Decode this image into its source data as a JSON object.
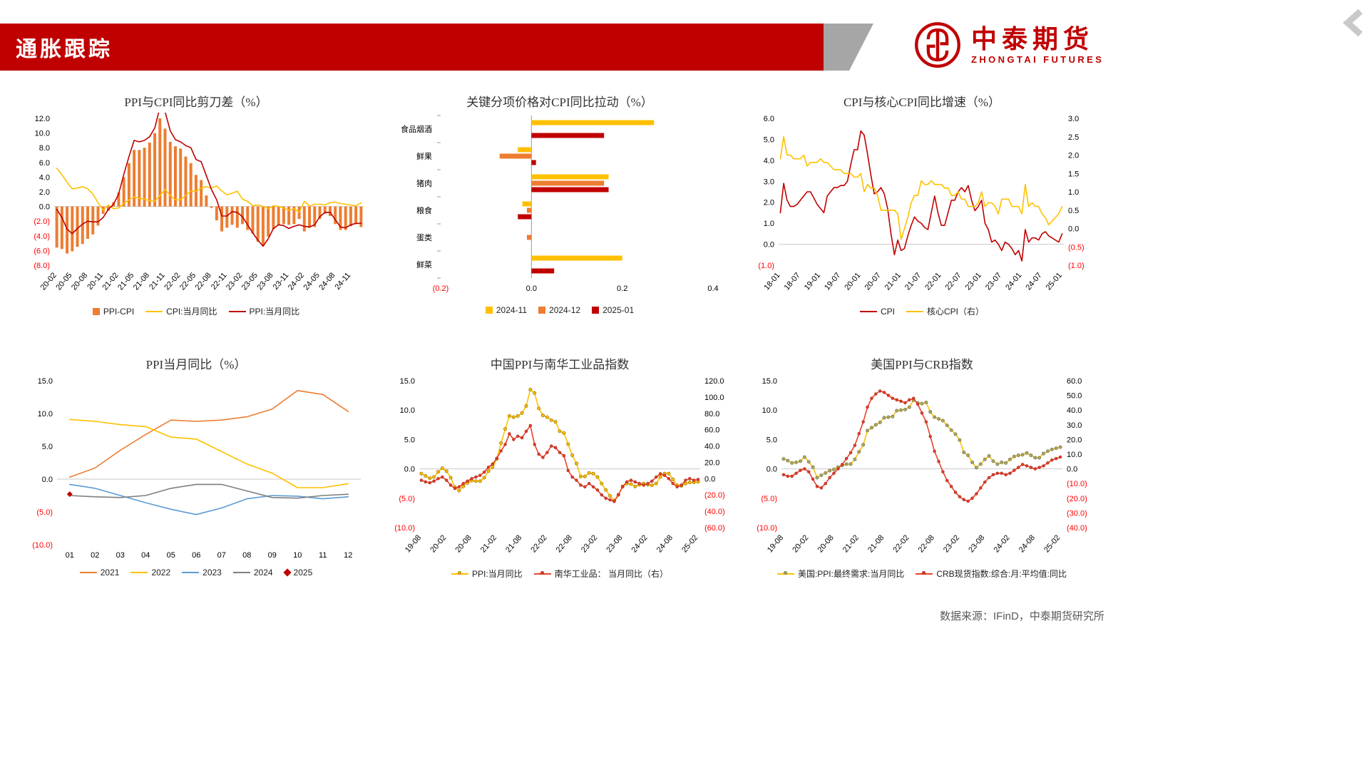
{
  "header": {
    "title": "通胀跟踪",
    "brand_name": "中泰期货",
    "brand_sub": "ZHONGTAI FUTURES",
    "accent_red": "#C00000",
    "swoosh_gray": "#A6A6A6"
  },
  "footer": {
    "source": "数据来源：IFinD，中泰期货研究所"
  },
  "chart_data": [
    {
      "type": "bar",
      "title": "PPI与CPI同比剪刀差（%）",
      "x_tick_labels": [
        "20-02",
        "20-05",
        "20-08",
        "20-11",
        "21-02",
        "21-05",
        "21-08",
        "21-11",
        "22-02",
        "22-05",
        "22-08",
        "22-11",
        "23-02",
        "23-05",
        "23-08",
        "23-11",
        "24-02",
        "24-05",
        "24-08",
        "24-11"
      ],
      "x_tick_every": 3,
      "left_axis": {
        "min": -8,
        "max": 12,
        "dec": 1,
        "ticks": [
          12,
          10,
          8,
          6,
          4,
          2,
          0,
          -2,
          -4,
          -6,
          -8
        ]
      },
      "series": [
        {
          "name": "PPI-CPI",
          "type": "bar",
          "color": "#ED7D31",
          "values": [
            -5.6,
            -5.8,
            -6.4,
            -6.1,
            -5.5,
            -5.1,
            -4.4,
            -3.8,
            -2.6,
            -1.0,
            -0.6,
            0.6,
            1.9,
            4.0,
            5.9,
            7.7,
            7.7,
            8.0,
            8.7,
            10.0,
            12.0,
            10.6,
            8.8,
            8.2,
            7.9,
            6.8,
            5.9,
            4.3,
            3.6,
            1.5,
            -0.2,
            -1.9,
            -3.4,
            -2.9,
            -2.5,
            -2.9,
            -2.4,
            -3.2,
            -3.7,
            -4.8,
            -5.4,
            -4.1,
            -3.1,
            -2.5,
            -2.4,
            -2.5,
            -2.4,
            -1.7,
            -3.4,
            -2.9,
            -2.8,
            -1.7,
            -1.0,
            -1.3,
            -2.4,
            -3.2,
            -3.2,
            -2.7,
            -2.4,
            -2.8
          ]
        },
        {
          "name": "CPI:当月同比",
          "type": "line",
          "color": "#FFC000",
          "values": [
            5.2,
            4.3,
            3.3,
            2.4,
            2.5,
            2.7,
            2.4,
            1.7,
            0.5,
            -0.5,
            0.2,
            -0.3,
            -0.2,
            0.4,
            0.9,
            1.3,
            1.1,
            1.0,
            0.8,
            0.7,
            1.5,
            2.3,
            1.5,
            0.9,
            0.9,
            1.5,
            2.1,
            2.1,
            2.5,
            2.7,
            2.5,
            2.8,
            2.1,
            1.6,
            1.8,
            2.1,
            1.0,
            0.7,
            0.1,
            0.2,
            0.0,
            -0.3,
            0.1,
            0.0,
            -0.2,
            -0.5,
            -0.3,
            -0.8,
            0.7,
            0.1,
            0.3,
            0.3,
            0.2,
            0.5,
            0.6,
            0.4,
            0.3,
            0.2,
            0.1,
            0.5
          ]
        },
        {
          "name": "PPI:当月同比",
          "type": "line",
          "color": "#C00000",
          "values": [
            -0.4,
            -1.5,
            -3.1,
            -3.7,
            -3.0,
            -2.4,
            -2.0,
            -2.1,
            -2.1,
            -1.5,
            -0.4,
            0.3,
            1.7,
            4.4,
            6.8,
            9.0,
            8.8,
            9.0,
            9.5,
            10.7,
            13.5,
            12.9,
            10.3,
            9.1,
            8.8,
            8.3,
            8.0,
            6.4,
            6.1,
            4.2,
            2.3,
            0.9,
            -1.3,
            -1.3,
            -0.7,
            -0.8,
            -1.4,
            -2.5,
            -3.6,
            -4.6,
            -5.4,
            -4.4,
            -3.0,
            -2.5,
            -2.6,
            -3.0,
            -2.7,
            -2.5,
            -2.7,
            -2.8,
            -2.5,
            -1.4,
            -0.8,
            -0.8,
            -1.8,
            -2.8,
            -2.9,
            -2.5,
            -2.3,
            -2.3
          ]
        }
      ]
    },
    {
      "type": "bar",
      "orientation": "horizontal",
      "title": "关键分项价格对CPI同比拉动（%）",
      "categories": [
        "食品烟酒",
        "鲜果",
        "猪肉",
        "粮食",
        "蛋类",
        "鲜菜"
      ],
      "value_axis": {
        "min": -0.2,
        "max": 0.4,
        "dec": 1,
        "ticks": [
          -0.2,
          0.0,
          0.2,
          0.4
        ]
      },
      "series": [
        {
          "name": "2024-11",
          "color": "#FFC000",
          "values": [
            0.27,
            -0.03,
            0.17,
            -0.02,
            0.0,
            0.2
          ]
        },
        {
          "name": "2024-12",
          "color": "#ED7D31",
          "values": [
            0.0,
            -0.07,
            0.16,
            -0.01,
            -0.01,
            0.0
          ]
        },
        {
          "name": "2025-01",
          "color": "#C00000",
          "values": [
            0.16,
            0.01,
            0.17,
            -0.03,
            0.0,
            0.05
          ]
        }
      ]
    },
    {
      "type": "line",
      "title": "CPI与核心CPI同比增速（%）",
      "x_tick_labels": [
        "18-01",
        "18-07",
        "19-01",
        "19-07",
        "20-01",
        "20-07",
        "21-01",
        "21-07",
        "22-01",
        "22-07",
        "23-01",
        "23-07",
        "24-01",
        "24-07",
        "25-01"
      ],
      "x_tick_every": 6,
      "left_axis": {
        "min": -1,
        "max": 6,
        "dec": 1,
        "ticks": [
          6,
          5,
          4,
          3,
          2,
          1,
          0,
          -1
        ]
      },
      "right_axis": {
        "min": -1,
        "max": 3,
        "dec": 1,
        "ticks": [
          3,
          2.5,
          2,
          1.5,
          1,
          0.5,
          0,
          -0.5,
          -1
        ]
      },
      "series": [
        {
          "name": "CPI",
          "type": "line",
          "color": "#C00000",
          "axis": "left",
          "values": [
            1.5,
            2.9,
            2.1,
            1.8,
            1.8,
            1.9,
            2.1,
            2.3,
            2.5,
            2.5,
            2.2,
            1.9,
            1.7,
            1.5,
            2.3,
            2.5,
            2.7,
            2.7,
            2.8,
            2.8,
            3.0,
            3.8,
            4.5,
            4.5,
            5.4,
            5.2,
            4.3,
            3.3,
            2.4,
            2.5,
            2.7,
            2.4,
            1.7,
            0.5,
            -0.5,
            0.2,
            -0.3,
            -0.2,
            0.4,
            0.9,
            1.3,
            1.1,
            1.0,
            0.8,
            0.7,
            1.5,
            2.3,
            1.5,
            0.9,
            0.9,
            1.5,
            2.1,
            2.1,
            2.5,
            2.7,
            2.5,
            2.8,
            2.1,
            1.6,
            1.8,
            2.1,
            1.0,
            0.7,
            0.1,
            0.2,
            0.0,
            -0.3,
            0.1,
            0.0,
            -0.2,
            -0.5,
            -0.3,
            -0.8,
            0.7,
            0.1,
            0.3,
            0.3,
            0.2,
            0.5,
            0.6,
            0.4,
            0.3,
            0.2,
            0.1,
            0.5
          ]
        },
        {
          "name": "核心CPI（右）",
          "type": "line",
          "color": "#FFC000",
          "axis": "right",
          "values": [
            1.9,
            2.5,
            2.0,
            2.0,
            1.9,
            1.9,
            1.9,
            2.0,
            1.7,
            1.8,
            1.8,
            1.8,
            1.9,
            1.8,
            1.8,
            1.7,
            1.6,
            1.6,
            1.6,
            1.5,
            1.5,
            1.5,
            1.4,
            1.4,
            1.5,
            1.0,
            1.2,
            1.1,
            1.1,
            0.9,
            0.5,
            0.5,
            0.5,
            0.5,
            0.5,
            0.4,
            -0.3,
            0.0,
            0.3,
            0.7,
            0.9,
            0.9,
            1.3,
            1.2,
            1.2,
            1.3,
            1.2,
            1.2,
            1.2,
            1.1,
            1.1,
            0.9,
            0.9,
            1.0,
            0.8,
            0.8,
            0.6,
            0.6,
            0.6,
            0.7,
            1.0,
            0.6,
            0.7,
            0.7,
            0.6,
            0.4,
            0.8,
            0.8,
            0.8,
            0.6,
            0.6,
            0.6,
            0.4,
            1.2,
            0.6,
            0.7,
            0.6,
            0.6,
            0.4,
            0.3,
            0.1,
            0.2,
            0.3,
            0.4,
            0.6
          ]
        }
      ]
    },
    {
      "type": "line",
      "title": "PPI当月同比（%）",
      "x_tick_labels": [
        "01",
        "02",
        "03",
        "04",
        "05",
        "06",
        "07",
        "08",
        "09",
        "10",
        "11",
        "12"
      ],
      "x_tick_every": 1,
      "left_axis": {
        "min": -10,
        "max": 15,
        "dec": 1,
        "ticks": [
          15,
          10,
          5,
          0,
          -5,
          -10
        ]
      },
      "series": [
        {
          "name": "2021",
          "type": "line",
          "color": "#ED7D31",
          "values": [
            0.3,
            1.7,
            4.4,
            6.8,
            9.0,
            8.8,
            9.0,
            9.5,
            10.7,
            13.5,
            12.9,
            10.3
          ]
        },
        {
          "name": "2022",
          "type": "line",
          "color": "#FFC000",
          "values": [
            9.1,
            8.8,
            8.3,
            8.0,
            6.4,
            6.1,
            4.2,
            2.3,
            0.9,
            -1.3,
            -1.3,
            -0.7
          ]
        },
        {
          "name": "2023",
          "type": "line",
          "color": "#5B9BD5",
          "values": [
            -0.8,
            -1.4,
            -2.5,
            -3.6,
            -4.6,
            -5.4,
            -4.4,
            -3.0,
            -2.5,
            -2.6,
            -3.0,
            -2.7
          ]
        },
        {
          "name": "2024",
          "type": "line",
          "color": "#7F7F7F",
          "values": [
            -2.5,
            -2.7,
            -2.8,
            -2.5,
            -1.4,
            -0.8,
            -0.8,
            -1.8,
            -2.8,
            -2.9,
            -2.5,
            -2.3
          ]
        },
        {
          "name": "2025",
          "type": "line",
          "color": "#C00000",
          "marker": "diamond",
          "values": [
            -2.3,
            null,
            null,
            null,
            null,
            null,
            null,
            null,
            null,
            null,
            null,
            null
          ]
        }
      ]
    },
    {
      "type": "line",
      "title": "中国PPI与南华工业品指数",
      "x_tick_labels": [
        "19-08",
        "20-02",
        "20-08",
        "21-02",
        "21-08",
        "22-02",
        "22-08",
        "23-02",
        "23-08",
        "24-02",
        "24-08",
        "25-02"
      ],
      "x_tick_every": 6,
      "left_axis": {
        "min": -10,
        "max": 15,
        "dec": 1,
        "ticks": [
          15,
          10,
          5,
          0,
          -5,
          -10
        ]
      },
      "right_axis": {
        "min": -60,
        "max": 120,
        "dec": 1,
        "ticks": [
          120,
          100,
          80,
          60,
          40,
          20,
          0,
          -20,
          -40,
          -60
        ]
      },
      "series": [
        {
          "name": "PPI:当月同比",
          "type": "line",
          "color": "#FFC000",
          "axis": "left",
          "marker": "circle",
          "marker_fill": "#FFC000",
          "marker_stroke": "#A07800",
          "values": [
            -0.8,
            -1.2,
            -1.6,
            -1.4,
            -0.5,
            0.1,
            -0.4,
            -1.5,
            -3.1,
            -3.7,
            -3.0,
            -2.4,
            -2.0,
            -2.1,
            -2.1,
            -1.5,
            -0.4,
            0.3,
            1.7,
            4.4,
            6.8,
            9.0,
            8.8,
            9.0,
            9.5,
            10.7,
            13.5,
            12.9,
            10.3,
            9.1,
            8.8,
            8.3,
            8.0,
            6.4,
            6.1,
            4.2,
            2.3,
            0.9,
            -1.3,
            -1.3,
            -0.7,
            -0.8,
            -1.4,
            -2.5,
            -3.6,
            -4.6,
            -5.4,
            -4.4,
            -3.0,
            -2.5,
            -2.6,
            -3.0,
            -2.7,
            -2.5,
            -2.7,
            -2.8,
            -2.5,
            -1.4,
            -0.8,
            -0.8,
            -1.8,
            -2.8,
            -2.9,
            -2.5,
            -2.3,
            -2.3,
            -2.2
          ]
        },
        {
          "name": "南华工业品： 当月同比（右）",
          "type": "line",
          "color": "#E8432D",
          "axis": "right",
          "marker": "circle",
          "marker_fill": "#E8432D",
          "marker_stroke": "#B02415",
          "marker_r": 1.8,
          "values": [
            -2,
            -4,
            -5,
            -3,
            0,
            2,
            -2,
            -8,
            -12,
            -10,
            -6,
            -3,
            0,
            2,
            4,
            8,
            14,
            18,
            25,
            34,
            42,
            55,
            48,
            52,
            50,
            58,
            65,
            42,
            30,
            26,
            32,
            40,
            38,
            32,
            28,
            10,
            2,
            -2,
            -8,
            -10,
            -6,
            -10,
            -14,
            -20,
            -24,
            -26,
            -28,
            -20,
            -10,
            -4,
            -2,
            -4,
            -6,
            -8,
            -6,
            -3,
            2,
            6,
            4,
            0,
            -6,
            -10,
            -8,
            -2,
            0,
            -2,
            -1
          ]
        }
      ]
    },
    {
      "type": "line",
      "title": "美国PPI与CRB指数",
      "x_tick_labels": [
        "19-08",
        "20-02",
        "20-08",
        "21-02",
        "21-08",
        "22-02",
        "22-08",
        "23-02",
        "23-08",
        "24-02",
        "24-08",
        "25-02"
      ],
      "x_tick_every": 6,
      "left_axis": {
        "min": -10,
        "max": 15,
        "dec": 1,
        "ticks": [
          15,
          10,
          5,
          0,
          -5,
          -10
        ]
      },
      "right_axis": {
        "min": -40,
        "max": 60,
        "dec": 1,
        "ticks": [
          60,
          50,
          40,
          30,
          20,
          10,
          0,
          -10,
          -20,
          -30,
          -40
        ]
      },
      "series": [
        {
          "name": "美国:PPI:最终需求:当月同比",
          "type": "line",
          "color": "#FFC000",
          "axis": "left",
          "marker": "circle",
          "marker_fill": "#A9A86E",
          "marker_stroke": "#7C7C43",
          "values": [
            1.7,
            1.4,
            1.0,
            1.1,
            1.3,
            2.0,
            1.2,
            0.3,
            -1.5,
            -1.1,
            -0.7,
            -0.3,
            -0.1,
            0.3,
            0.6,
            0.8,
            0.8,
            1.6,
            2.9,
            4.1,
            6.5,
            7.0,
            7.5,
            7.9,
            8.7,
            8.8,
            8.9,
            9.9,
            10.0,
            10.1,
            10.5,
            11.7,
            11.2,
            11.1,
            11.3,
            9.7,
            8.8,
            8.5,
            8.2,
            7.4,
            6.6,
            5.9,
            4.9,
            2.8,
            2.3,
            1.1,
            0.2,
            0.8,
            1.6,
            2.2,
            1.3,
            0.8,
            1.1,
            1.0,
            1.6,
            2.1,
            2.3,
            2.4,
            2.7,
            2.3,
            1.9,
            1.9,
            2.6,
            3.0,
            3.3,
            3.5,
            3.7
          ]
        },
        {
          "name": "CRB现货指数:综合:月:平均值:同比",
          "type": "line",
          "color": "#E8432D",
          "axis": "right",
          "marker": "circle",
          "marker_fill": "#E8432D",
          "marker_stroke": "#B02415",
          "marker_r": 1.8,
          "values": [
            -4,
            -5,
            -5,
            -3,
            -1,
            0,
            -2,
            -7,
            -12,
            -13,
            -10,
            -6,
            -3,
            0,
            3,
            7,
            11,
            16,
            24,
            32,
            42,
            48,
            51,
            53,
            52,
            50,
            48,
            47,
            46,
            45,
            47,
            48,
            44,
            38,
            32,
            22,
            12,
            5,
            -2,
            -8,
            -12,
            -16,
            -19,
            -21,
            -22,
            -20,
            -17,
            -13,
            -9,
            -6,
            -4,
            -3,
            -3,
            -4,
            -3,
            -1,
            1,
            3,
            2,
            1,
            0,
            1,
            2,
            4,
            6,
            7,
            8
          ]
        }
      ]
    }
  ]
}
